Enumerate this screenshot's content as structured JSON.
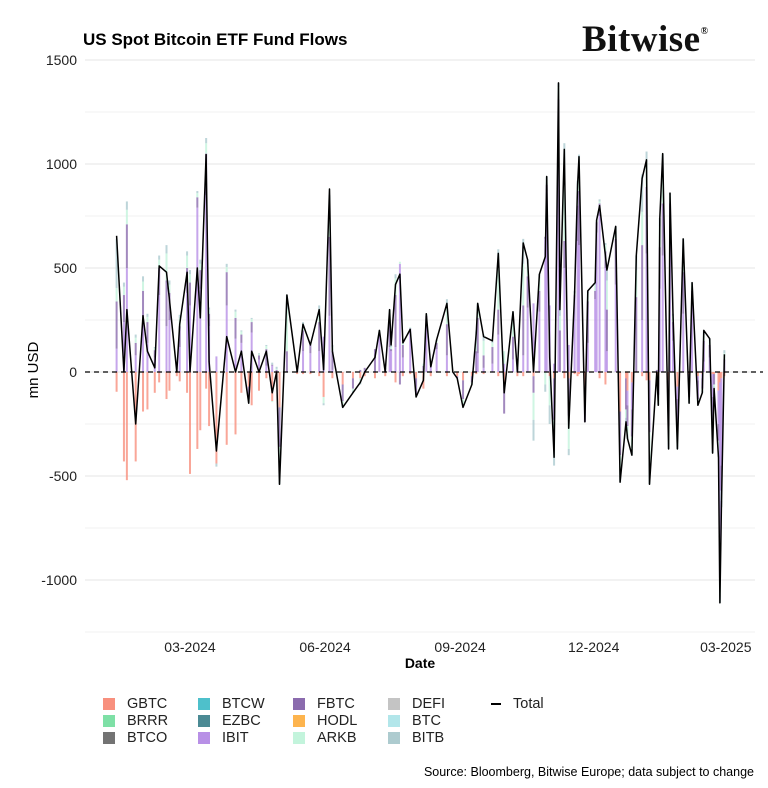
{
  "chart_data": {
    "type": "bar+line",
    "title": "US Spot Bitcoin ETF Fund Flows",
    "xlabel": "Date",
    "ylabel": "mn USD",
    "ylim": [
      -1250,
      1500
    ],
    "yticks": [
      1500,
      1000,
      500,
      0,
      -500,
      -1000
    ],
    "ytick_labels": [
      "1500",
      "1000",
      "500",
      "0",
      "-500",
      "-1000"
    ],
    "xticks": [
      "2024-03-01",
      "2024-06-01",
      "2024-09-01",
      "2024-12-01",
      "2025-03-01"
    ],
    "xtick_labels": [
      "03-2024",
      "06-2024",
      "09-2024",
      "12-2024",
      "03-2025"
    ],
    "grid": "horizontal",
    "zero_line": "dashed",
    "legend_position": "bottom",
    "legend": [
      {
        "name": "GBTC",
        "color": "#F8907E"
      },
      {
        "name": "BRRR",
        "color": "#7EE0A6"
      },
      {
        "name": "BTCO",
        "color": "#737373"
      },
      {
        "name": "BTCW",
        "color": "#4EC0CB"
      },
      {
        "name": "EZBC",
        "color": "#4B8A94"
      },
      {
        "name": "IBIT",
        "color": "#B890E6"
      },
      {
        "name": "FBTC",
        "color": "#8B6BAE"
      },
      {
        "name": "HODL",
        "color": "#FDB44E"
      },
      {
        "name": "ARKB",
        "color": "#C3F4DC"
      },
      {
        "name": "DEFI",
        "color": "#C4C4C4"
      },
      {
        "name": "BTC",
        "color": "#B2E6EA"
      },
      {
        "name": "BITB",
        "color": "#ADCBCF"
      }
    ],
    "total_label": "Total",
    "dates": [
      "2024-01-11",
      "2024-01-16",
      "2024-01-18",
      "2024-01-24",
      "2024-01-29",
      "2024-02-01",
      "2024-02-06",
      "2024-02-09",
      "2024-02-14",
      "2024-02-16",
      "2024-02-21",
      "2024-02-23",
      "2024-02-28",
      "2024-03-01",
      "2024-03-06",
      "2024-03-08",
      "2024-03-12",
      "2024-03-14",
      "2024-03-19",
      "2024-03-26",
      "2024-04-01",
      "2024-04-05",
      "2024-04-10",
      "2024-04-12",
      "2024-04-17",
      "2024-04-22",
      "2024-04-26",
      "2024-04-29",
      "2024-05-01",
      "2024-05-06",
      "2024-05-13",
      "2024-05-17",
      "2024-05-22",
      "2024-05-28",
      "2024-05-31",
      "2024-06-04",
      "2024-06-06",
      "2024-06-13",
      "2024-06-20",
      "2024-06-25",
      "2024-06-28",
      "2024-07-05",
      "2024-07-08",
      "2024-07-12",
      "2024-07-15",
      "2024-07-16",
      "2024-07-19",
      "2024-07-22",
      "2024-07-24",
      "2024-07-29",
      "2024-08-02",
      "2024-08-07",
      "2024-08-09",
      "2024-08-12",
      "2024-08-16",
      "2024-08-23",
      "2024-08-27",
      "2024-08-30",
      "2024-09-03",
      "2024-09-09",
      "2024-09-12",
      "2024-09-13",
      "2024-09-17",
      "2024-09-23",
      "2024-09-27",
      "2024-10-01",
      "2024-10-07",
      "2024-10-10",
      "2024-10-14",
      "2024-10-17",
      "2024-10-21",
      "2024-10-25",
      "2024-10-29",
      "2024-10-30",
      "2024-11-01",
      "2024-11-04",
      "2024-11-07",
      "2024-11-08",
      "2024-11-11",
      "2024-11-14",
      "2024-11-18",
      "2024-11-20",
      "2024-11-21",
      "2024-11-25",
      "2024-11-27",
      "2024-12-02",
      "2024-12-03",
      "2024-12-05",
      "2024-12-09",
      "2024-12-10",
      "2024-12-16",
      "2024-12-19",
      "2024-12-23",
      "2024-12-24",
      "2024-12-27",
      "2024-12-30",
      "2025-01-03",
      "2025-01-06",
      "2025-01-08",
      "2025-01-13",
      "2025-01-14",
      "2025-01-15",
      "2025-01-17",
      "2025-01-21",
      "2025-01-22",
      "2025-01-24",
      "2025-01-27",
      "2025-01-31",
      "2025-02-04",
      "2025-02-06",
      "2025-02-10",
      "2025-02-13",
      "2025-02-14",
      "2025-02-18",
      "2025-02-20",
      "2025-02-21",
      "2025-02-24",
      "2025-02-25",
      "2025-02-26",
      "2025-02-28"
    ],
    "total": [
      655,
      0,
      300,
      -250,
      270,
      100,
      20,
      510,
      480,
      350,
      0,
      230,
      480,
      0,
      500,
      260,
      1045,
      50,
      -380,
      170,
      0,
      100,
      -150,
      100,
      0,
      100,
      -100,
      0,
      -540,
      370,
      0,
      230,
      130,
      300,
      10,
      880,
      100,
      -170,
      -100,
      -50,
      0,
      70,
      200,
      0,
      300,
      130,
      420,
      470,
      140,
      205,
      -120,
      -40,
      280,
      25,
      155,
      330,
      0,
      -30,
      -170,
      -60,
      190,
      330,
      170,
      150,
      570,
      -100,
      290,
      0,
      620,
      540,
      0,
      470,
      555,
      940,
      70,
      -410,
      1390,
      300,
      1070,
      -270,
      380,
      900,
      1035,
      -240,
      390,
      430,
      730,
      800,
      560,
      490,
      700,
      -530,
      -240,
      -320,
      -400,
      560,
      930,
      1020,
      -540,
      0,
      -160,
      740,
      1050,
      -370,
      860,
      280,
      -370,
      640,
      -150,
      430,
      -160,
      -100,
      200,
      160,
      -390,
      -80,
      -410,
      -1110,
      -650,
      85
    ],
    "series": [
      {
        "name": "GBTC",
        "values": [
          -95,
          -430,
          -520,
          -430,
          -190,
          -180,
          -100,
          -50,
          -130,
          -90,
          -20,
          -45,
          -100,
          -490,
          -370,
          -280,
          -80,
          -260,
          -440,
          -350,
          -300,
          -100,
          -70,
          -160,
          -90,
          -30,
          -140,
          -25,
          -170,
          0,
          -10,
          -10,
          -10,
          -20,
          -120,
          0,
          -30,
          -60,
          -30,
          -30,
          -20,
          -30,
          0,
          -20,
          0,
          0,
          -50,
          0,
          -20,
          -10,
          -30,
          -80,
          0,
          -20,
          0,
          -20,
          0,
          -20,
          -40,
          -20,
          -10,
          0,
          -10,
          0,
          -20,
          -60,
          0,
          -20,
          -20,
          0,
          -20,
          0,
          0,
          0,
          -20,
          -30,
          0,
          0,
          -30,
          -30,
          -10,
          -20,
          -10,
          -160,
          0,
          0,
          0,
          -30,
          -60,
          0,
          0,
          -190,
          -30,
          -90,
          -50,
          0,
          -20,
          -40,
          -40,
          -10,
          -20,
          0,
          0,
          -40,
          0,
          0,
          -70,
          0,
          -10,
          0,
          -20,
          -10,
          0,
          0,
          -10,
          -10,
          -90,
          -50,
          -30,
          -20
        ]
      },
      {
        "name": "IBIT",
        "values": [
          112,
          240,
          500,
          80,
          250,
          140,
          70,
          370,
          220,
          250,
          0,
          120,
          380,
          320,
          790,
          400,
          850,
          220,
          75,
          320,
          160,
          140,
          0,
          190,
          60,
          30,
          30,
          0,
          0,
          0,
          0,
          100,
          90,
          100,
          170,
          270,
          10,
          0,
          0,
          0,
          10,
          0,
          190,
          10,
          120,
          100,
          120,
          520,
          70,
          200,
          0,
          0,
          240,
          30,
          110,
          80,
          0,
          0,
          0,
          0,
          0,
          90,
          20,
          40,
          180,
          40,
          60,
          20,
          80,
          310,
          330,
          290,
          640,
          870,
          320,
          40,
          1120,
          0,
          500,
          130,
          370,
          630,
          610,
          0,
          140,
          350,
          670,
          750,
          500,
          100,
          420,
          0,
          0,
          -70,
          -130,
          0,
          250,
          570,
          0,
          0,
          0,
          400,
          560,
          0,
          660,
          150,
          -60,
          280,
          0,
          320,
          -20,
          -20,
          50,
          70,
          -110,
          0,
          -160,
          -800,
          -420,
          0
        ]
      },
      {
        "name": "FBTC",
        "values": [
          227,
          130,
          210,
          60,
          140,
          100,
          35,
          130,
          220,
          130,
          10,
          100,
          120,
          110,
          50,
          90,
          200,
          60,
          0,
          160,
          100,
          40,
          -60,
          50,
          20,
          80,
          5,
          10,
          -190,
          100,
          10,
          100,
          40,
          140,
          0,
          380,
          90,
          -80,
          -50,
          10,
          10,
          110,
          0,
          10,
          130,
          10,
          250,
          -60,
          60,
          10,
          -80,
          30,
          30,
          10,
          30,
          150,
          0,
          -10,
          -90,
          -30,
          100,
          170,
          60,
          80,
          120,
          -140,
          110,
          0,
          240,
          150,
          -80,
          100,
          10,
          30,
          0,
          -200,
          190,
          200,
          130,
          -180,
          0,
          170,
          260,
          -80,
          200,
          40,
          50,
          60,
          80,
          200,
          220,
          -210,
          -150,
          -100,
          -130,
          360,
          360,
          320,
          -250,
          10,
          -90,
          200,
          250,
          -220,
          150,
          90,
          -160,
          200,
          -110,
          70,
          -90,
          -50,
          100,
          60,
          -150,
          -50,
          -80,
          -140,
          -120,
          60
        ]
      },
      {
        "name": "ARKB",
        "values": [
          65,
          40,
          70,
          25,
          45,
          25,
          10,
          40,
          130,
          40,
          5,
          40,
          60,
          40,
          20,
          30,
          50,
          20,
          0,
          25,
          30,
          15,
          -10,
          15,
          5,
          15,
          -5,
          5,
          -100,
          200,
          0,
          30,
          10,
          60,
          -30,
          140,
          20,
          -20,
          -10,
          -20,
          0,
          0,
          10,
          0,
          40,
          10,
          80,
          10,
          20,
          5,
          -10,
          10,
          10,
          5,
          10,
          80,
          0,
          0,
          -30,
          -10,
          80,
          50,
          70,
          20,
          200,
          60,
          100,
          0,
          200,
          60,
          -130,
          60,
          -60,
          20,
          -140,
          -140,
          60,
          70,
          280,
          -160,
          10,
          80,
          120,
          0,
          40,
          30,
          10,
          10,
          30,
          140,
          50,
          -100,
          -40,
          -40,
          -70,
          130,
          160,
          120,
          -150,
          0,
          -40,
          100,
          150,
          -80,
          40,
          30,
          -60,
          100,
          -20,
          30,
          -20,
          -10,
          30,
          20,
          -90,
          -10,
          -50,
          -80,
          -50,
          30
        ]
      },
      {
        "name": "BITB",
        "values": [
          237,
          20,
          40,
          15,
          25,
          15,
          5,
          20,
          40,
          20,
          5,
          15,
          20,
          20,
          10,
          20,
          25,
          10,
          -15,
          15,
          10,
          5,
          -10,
          5,
          5,
          5,
          10,
          10,
          -80,
          70,
          0,
          10,
          0,
          20,
          -10,
          60,
          10,
          -10,
          -10,
          -10,
          0,
          0,
          0,
          0,
          10,
          10,
          20,
          0,
          10,
          0,
          0,
          0,
          0,
          0,
          5,
          40,
          0,
          0,
          -10,
          0,
          20,
          20,
          30,
          10,
          90,
          0,
          20,
          0,
          120,
          20,
          -100,
          20,
          -35,
          20,
          -90,
          -80,
          20,
          30,
          190,
          -30,
          10,
          40,
          55,
          0,
          10,
          10,
          0,
          10,
          10,
          50,
          10,
          -30,
          -20,
          -20,
          -20,
          70,
          180,
          50,
          -100,
          0,
          -10,
          40,
          90,
          -30,
          10,
          10,
          -20,
          60,
          -10,
          10,
          -10,
          -10,
          20,
          10,
          -30,
          -10,
          -30,
          -40,
          -30,
          15
        ]
      }
    ]
  },
  "footer": {
    "source": "Source: Bloomberg, Bitwise Europe; data subject to change"
  },
  "brand": {
    "logo_text": "Bitwise",
    "logo_mark": "®"
  }
}
